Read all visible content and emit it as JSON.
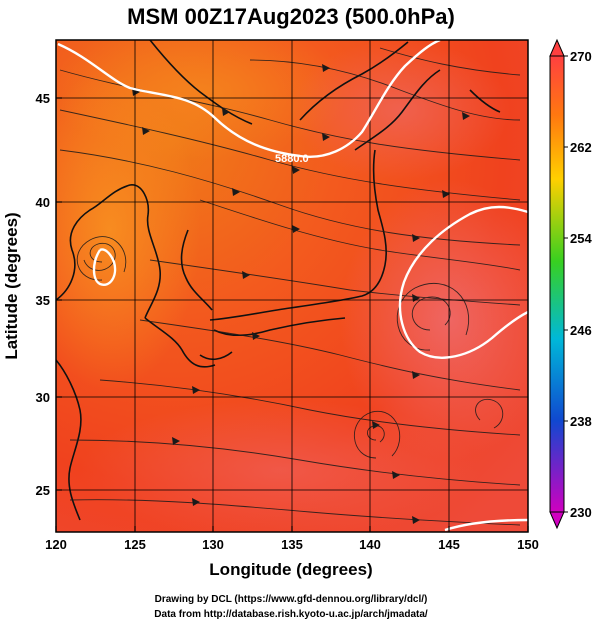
{
  "title": "MSM 00Z17Aug2023 (500.0hPa)",
  "xlabel": "Longitude (degrees)",
  "ylabel": "Latitude  (degrees)",
  "x_ticks": [
    "120",
    "125",
    "130",
    "135",
    "140",
    "145",
    "150"
  ],
  "y_ticks": [
    "25",
    "30",
    "35",
    "40",
    "45"
  ],
  "colorbar": {
    "labels": [
      "270",
      "262",
      "254",
      "246",
      "238",
      "230"
    ],
    "colors": [
      "#ff3a3a",
      "#ff7a10",
      "#ffd000",
      "#40d020",
      "#00b8d8",
      "#1050d0",
      "#d000c0"
    ]
  },
  "contour_label": "5880.0",
  "credits": {
    "line1": "Drawing by DCL (https://www.gfd-dennou.org/library/dcl/)",
    "line2": "Data from http://database.rish.kyoto-u.ac.jp/arch/jmadata/"
  },
  "chart_data": {
    "type": "heatmap",
    "title": "MSM 00Z17Aug2023 (500.0hPa)",
    "xlabel": "Longitude (degrees)",
    "ylabel": "Latitude  (degrees)",
    "xlim": [
      120,
      150
    ],
    "ylim": [
      22.4,
      47.6
    ],
    "colorbar_range": [
      230,
      270
    ],
    "contour_levels": [
      5880.0
    ]
  }
}
